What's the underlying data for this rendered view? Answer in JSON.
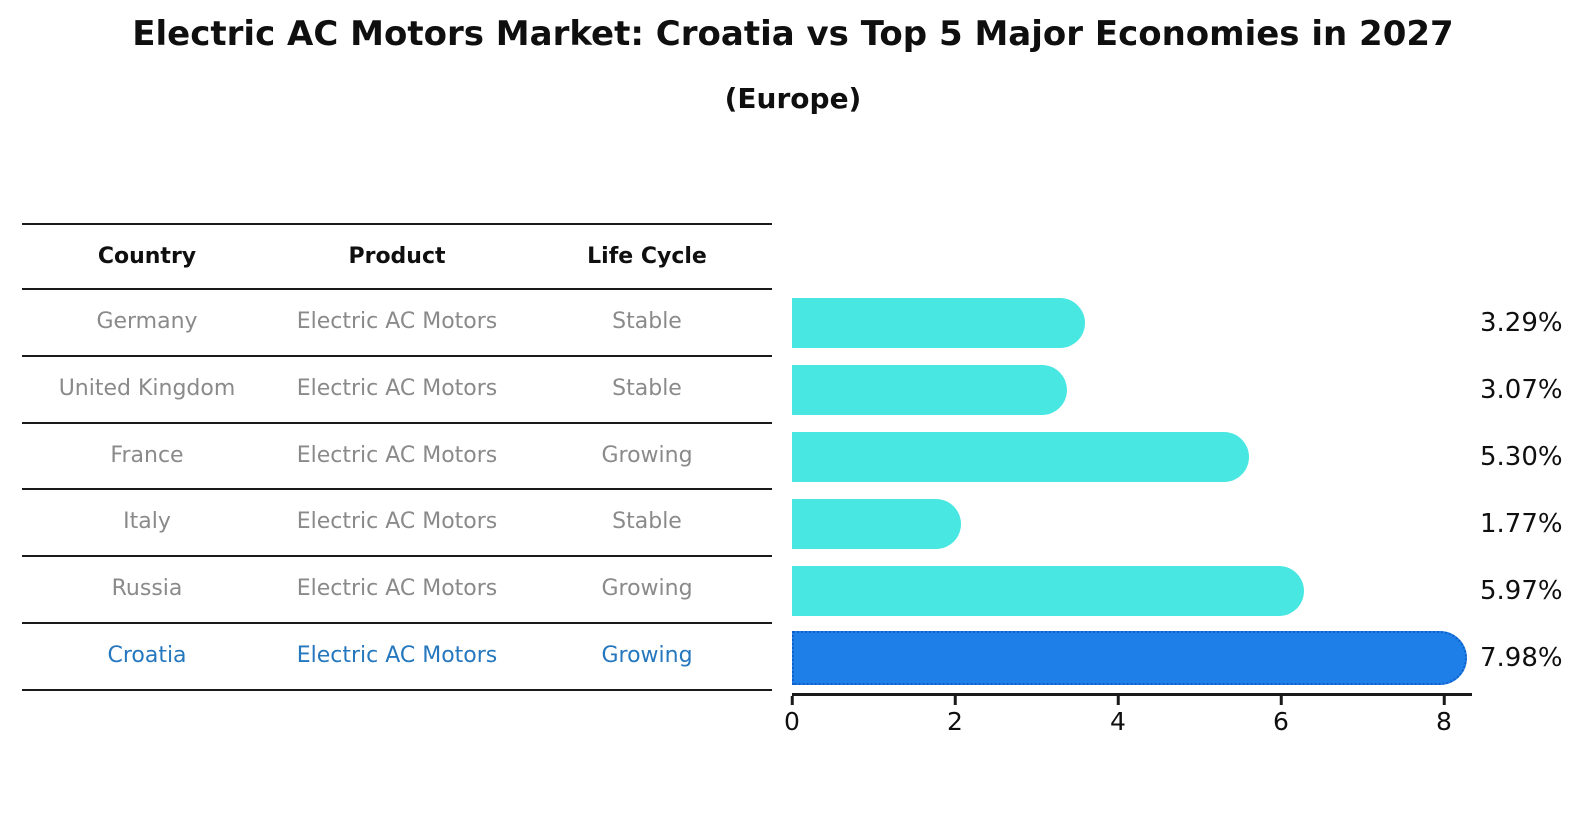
{
  "title": "Electric AC Motors Market: Croatia vs Top 5 Major Economies in 2027",
  "subtitle": "(Europe)",
  "table": {
    "headers": [
      "Country",
      "Product",
      "Life Cycle"
    ],
    "rows": [
      {
        "country": "Germany",
        "product": "Electric AC Motors",
        "life_cycle": "Stable",
        "highlight": false
      },
      {
        "country": "United Kingdom",
        "product": "Electric AC Motors",
        "life_cycle": "Stable",
        "highlight": false
      },
      {
        "country": "France",
        "product": "Electric AC Motors",
        "life_cycle": "Growing",
        "highlight": false
      },
      {
        "country": "Italy",
        "product": "Electric AC Motors",
        "life_cycle": "Stable",
        "highlight": false
      },
      {
        "country": "Russia",
        "product": "Electric AC Motors",
        "life_cycle": "Growing",
        "highlight": false
      },
      {
        "country": "Croatia",
        "product": "Electric AC Motors",
        "life_cycle": "Growing",
        "highlight": true
      }
    ]
  },
  "chart_data": {
    "type": "bar",
    "orientation": "horizontal",
    "title": "Electric AC Motors Market: Croatia vs Top 5 Major Economies in 2027",
    "subtitle": "(Europe)",
    "categories": [
      "Germany",
      "United Kingdom",
      "France",
      "Italy",
      "Russia",
      "Croatia"
    ],
    "values": [
      3.29,
      3.07,
      5.3,
      1.77,
      5.97,
      7.98
    ],
    "value_labels": [
      "3.29%",
      "3.07%",
      "5.30%",
      "1.77%",
      "5.97%",
      "7.98%"
    ],
    "x_ticks": [
      "0",
      "2",
      "4",
      "6",
      "8"
    ],
    "x_tick_values": [
      0,
      2,
      4,
      6,
      8
    ],
    "xlim": [
      0,
      8.33
    ],
    "grid": false,
    "legend": "none",
    "highlight_index": 5,
    "bar_color": "#49e7e2",
    "highlight_color": "#1e7fe8",
    "highlight_border_color": "#1060c8",
    "highlight_text_color": "#2577be",
    "row_text_color": "#8a8a8a"
  }
}
